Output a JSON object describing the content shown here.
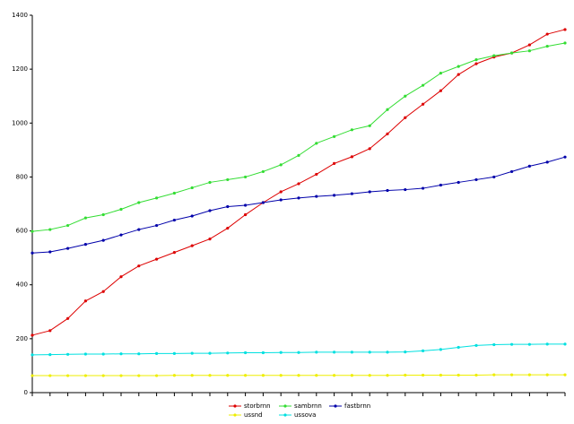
{
  "chart_data": {
    "type": "line",
    "x": [
      0,
      1,
      2,
      3,
      4,
      5,
      6,
      7,
      8,
      9,
      10,
      11,
      12,
      13,
      14,
      15,
      16,
      17,
      18,
      19,
      20,
      21,
      22,
      23,
      24,
      25,
      26,
      27,
      28,
      29,
      30
    ],
    "xlim": [
      0,
      30
    ],
    "ylim": [
      0,
      1400
    ],
    "yticks": [
      0,
      200,
      400,
      600,
      800,
      1000,
      1200,
      1400
    ],
    "grid": false,
    "legend": "bottom",
    "series": [
      {
        "name": "storbrnn",
        "color": "#dd0000",
        "values": [
          213,
          230,
          275,
          340,
          375,
          430,
          470,
          495,
          520,
          545,
          570,
          610,
          660,
          705,
          745,
          775,
          810,
          850,
          875,
          905,
          960,
          1020,
          1070,
          1120,
          1180,
          1220,
          1245,
          1260,
          1290,
          1330,
          1347
        ]
      },
      {
        "name": "sambrnn",
        "color": "#33dd33",
        "values": [
          598,
          605,
          620,
          648,
          660,
          680,
          705,
          722,
          740,
          760,
          780,
          790,
          800,
          820,
          845,
          880,
          925,
          950,
          975,
          990,
          1050,
          1100,
          1140,
          1185,
          1210,
          1235,
          1250,
          1260,
          1268,
          1285,
          1297
        ]
      },
      {
        "name": "fastbrnn",
        "color": "#0000aa",
        "values": [
          518,
          522,
          535,
          550,
          565,
          585,
          605,
          620,
          640,
          655,
          675,
          690,
          695,
          705,
          715,
          722,
          728,
          732,
          738,
          745,
          750,
          753,
          758,
          770,
          780,
          790,
          800,
          820,
          840,
          855,
          874
        ]
      },
      {
        "name": "ussnd",
        "color": "#eeee00",
        "values": [
          63,
          63,
          63,
          63,
          63,
          63,
          63,
          63,
          64,
          64,
          64,
          64,
          64,
          64,
          64,
          64,
          64,
          64,
          64,
          64,
          64,
          65,
          65,
          65,
          65,
          65,
          66,
          66,
          66,
          66,
          66
        ]
      },
      {
        "name": "ussova",
        "color": "#00e0e0",
        "values": [
          140,
          141,
          142,
          143,
          143,
          144,
          144,
          145,
          145,
          146,
          146,
          147,
          148,
          148,
          149,
          149,
          150,
          150,
          150,
          150,
          150,
          151,
          155,
          160,
          168,
          175,
          178,
          179,
          179,
          180,
          180
        ]
      }
    ]
  }
}
